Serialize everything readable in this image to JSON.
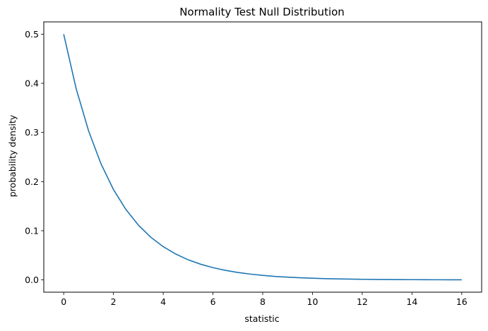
{
  "chart_data": {
    "type": "line",
    "title": "Normality Test Null Distribution",
    "xlabel": "statistic",
    "ylabel": "probability density",
    "xlim": [
      -0.8,
      16.8
    ],
    "ylim": [
      -0.025,
      0.525
    ],
    "xticks": [
      0,
      2,
      4,
      6,
      8,
      10,
      12,
      14,
      16
    ],
    "xtick_labels": [
      "0",
      "2",
      "4",
      "6",
      "8",
      "10",
      "12",
      "14",
      "16"
    ],
    "yticks": [
      0.0,
      0.1,
      0.2,
      0.3,
      0.4,
      0.5
    ],
    "ytick_labels": [
      "0.0",
      "0.1",
      "0.2",
      "0.3",
      "0.4",
      "0.5"
    ],
    "grid": false,
    "legend": "none",
    "series": [
      {
        "color": "#1f77b4",
        "x": [
          0,
          0.5,
          1,
          1.5,
          2,
          2.5,
          3,
          3.5,
          4,
          4.5,
          5,
          5.5,
          6,
          6.5,
          7,
          7.5,
          8,
          8.5,
          9,
          9.5,
          10,
          10.5,
          11,
          11.5,
          12,
          12.5,
          13,
          13.5,
          14,
          14.5,
          15,
          15.5,
          16
        ],
        "y": [
          0.5,
          0.3894,
          0.3033,
          0.2362,
          0.1839,
          0.1433,
          0.1116,
          0.0869,
          0.0677,
          0.0527,
          0.041,
          0.032,
          0.0249,
          0.0194,
          0.0151,
          0.0118,
          0.0092,
          0.0071,
          0.0056,
          0.0043,
          0.0034,
          0.0026,
          0.002,
          0.0016,
          0.0012,
          0.001,
          0.0008,
          0.0006,
          0.0005,
          0.0004,
          0.0003,
          0.0002,
          0.0002
        ]
      }
    ]
  }
}
